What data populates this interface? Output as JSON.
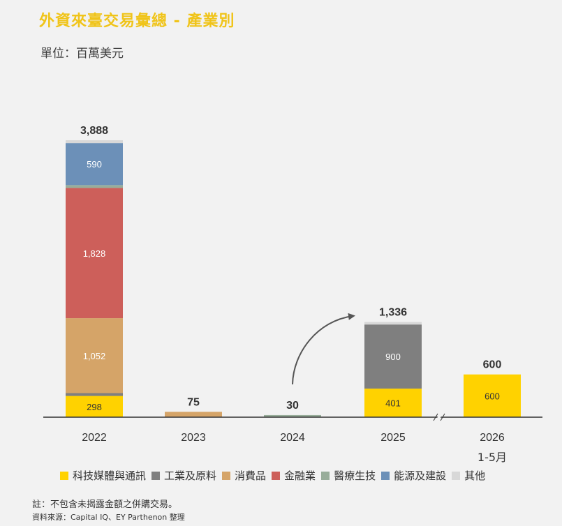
{
  "title": "外資來臺交易彙總 - 產業別",
  "unit": "單位：百萬美元",
  "note": "註：不包含未揭露金額之併購交易。",
  "source": "資料來源：Capital IQ、EY Parthenon 整理",
  "chart_data": {
    "type": "bar",
    "stacked": true,
    "categories": [
      "2022",
      "2023",
      "2024",
      "2025",
      "2026"
    ],
    "category_sublabels": [
      "",
      "",
      "",
      "",
      "1-5月"
    ],
    "totals": [
      "3,888",
      "75",
      "30",
      "1,336",
      "600"
    ],
    "series": [
      {
        "name": "科技媒體與通訊",
        "color": "#ffd200",
        "values": [
          298,
          0,
          0,
          401,
          600
        ],
        "labels": [
          "298",
          "",
          "",
          "401",
          "600"
        ]
      },
      {
        "name": "工業及原料",
        "color": "#7f7f7f",
        "values": [
          40,
          0,
          0,
          900,
          0
        ],
        "labels": [
          "",
          "",
          "",
          "900",
          ""
        ]
      },
      {
        "name": "消費品",
        "color": "#d5a468",
        "values": [
          1052,
          75,
          0,
          0,
          0
        ],
        "labels": [
          "1,052",
          "",
          "",
          "",
          ""
        ]
      },
      {
        "name": "金融業",
        "color": "#cd5f5a",
        "values": [
          1828,
          0,
          0,
          0,
          0
        ],
        "labels": [
          "1,828",
          "",
          "",
          "",
          ""
        ]
      },
      {
        "name": "醫療生技",
        "color": "#98ad9a",
        "values": [
          40,
          0,
          30,
          0,
          0
        ],
        "labels": [
          "",
          "",
          "",
          "",
          ""
        ]
      },
      {
        "name": "能源及建設",
        "color": "#6c90b8",
        "values": [
          590,
          0,
          0,
          0,
          0
        ],
        "labels": [
          "590",
          "",
          "",
          "",
          ""
        ]
      },
      {
        "name": "其他",
        "color": "#d8d8d8",
        "values": [
          40,
          0,
          0,
          35,
          0
        ],
        "labels": [
          "",
          "",
          "",
          "",
          ""
        ]
      }
    ],
    "axis_break_between": [
      "2025",
      "2026"
    ],
    "legend_position": "bottom",
    "grid": false
  }
}
